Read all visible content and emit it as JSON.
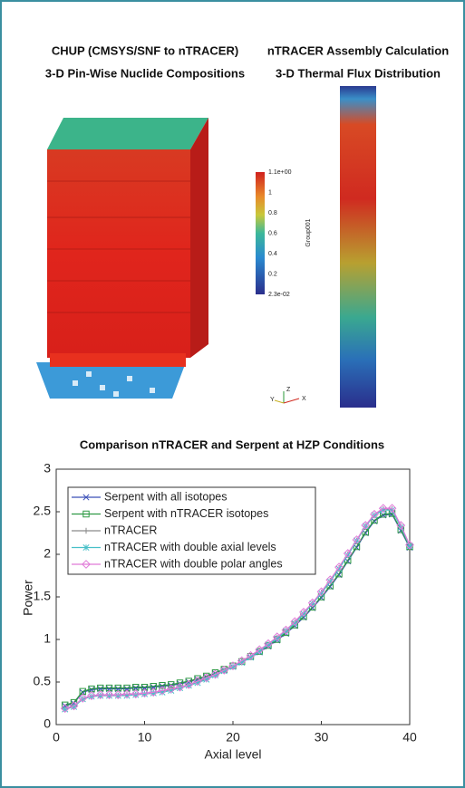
{
  "renderings": {
    "left_title": [
      "CHUP (CMSYS/SNF to nTRACER)",
      "3-D Pin-Wise Nuclide Compositions"
    ],
    "right_title": [
      "nTRACER Assembly Calculation",
      "3-D Thermal Flux Distribution"
    ],
    "colorbar": {
      "labels": [
        "1.1e+00",
        "1",
        "0.8",
        "0.6",
        "0.4",
        "0.2",
        "2.3e-02"
      ],
      "name": "Group001"
    },
    "axes_triad": [
      "Y",
      "Z",
      "X"
    ]
  },
  "chart_data": {
    "type": "line",
    "title": "Comparison nTRACER and Serpent at HZP Conditions",
    "x_label": "Axial level",
    "y_label": "Power",
    "x": [
      1,
      2,
      3,
      4,
      5,
      6,
      7,
      8,
      9,
      10,
      11,
      12,
      13,
      14,
      15,
      16,
      17,
      18,
      19,
      20,
      21,
      22,
      23,
      24,
      25,
      26,
      27,
      28,
      29,
      30,
      31,
      32,
      33,
      34,
      35,
      36,
      37,
      38,
      39,
      40
    ],
    "xlim": [
      0,
      40
    ],
    "xticks": [
      0,
      10,
      20,
      30,
      40
    ],
    "ylim": [
      0,
      3
    ],
    "yticks": [
      0,
      0.5,
      1,
      1.5,
      2,
      2.5,
      3
    ],
    "legend": "top-left",
    "series": [
      {
        "name": "Serpent with all isotopes",
        "color": "#3a4fb8",
        "marker": "x",
        "values": [
          0.22,
          0.25,
          0.38,
          0.41,
          0.42,
          0.42,
          0.42,
          0.42,
          0.43,
          0.43,
          0.44,
          0.45,
          0.46,
          0.48,
          0.5,
          0.53,
          0.56,
          0.6,
          0.64,
          0.68,
          0.73,
          0.79,
          0.85,
          0.92,
          0.99,
          1.07,
          1.16,
          1.26,
          1.37,
          1.49,
          1.62,
          1.76,
          1.92,
          2.08,
          2.25,
          2.39,
          2.46,
          2.47,
          2.28,
          2.08
        ]
      },
      {
        "name": "Serpent with nTRACER isotopes",
        "color": "#2e9a44",
        "marker": "square",
        "values": [
          0.23,
          0.26,
          0.39,
          0.42,
          0.43,
          0.43,
          0.43,
          0.43,
          0.44,
          0.44,
          0.45,
          0.46,
          0.47,
          0.49,
          0.51,
          0.54,
          0.57,
          0.61,
          0.65,
          0.69,
          0.74,
          0.8,
          0.86,
          0.93,
          1.0,
          1.08,
          1.17,
          1.27,
          1.38,
          1.5,
          1.63,
          1.77,
          1.93,
          2.09,
          2.26,
          2.4,
          2.47,
          2.48,
          2.29,
          2.09
        ]
      },
      {
        "name": "nTRACER",
        "color": "#8a8a8a",
        "marker": "vline",
        "values": [
          0.18,
          0.21,
          0.3,
          0.33,
          0.34,
          0.34,
          0.34,
          0.35,
          0.35,
          0.36,
          0.37,
          0.39,
          0.41,
          0.43,
          0.46,
          0.5,
          0.54,
          0.58,
          0.63,
          0.68,
          0.74,
          0.8,
          0.87,
          0.94,
          1.02,
          1.1,
          1.2,
          1.31,
          1.42,
          1.55,
          1.69,
          1.84,
          2.0,
          2.16,
          2.33,
          2.46,
          2.53,
          2.53,
          2.33,
          2.1
        ]
      },
      {
        "name": "nTRACER with double axial levels",
        "color": "#48c0c8",
        "marker": "star",
        "values": [
          0.18,
          0.21,
          0.3,
          0.33,
          0.34,
          0.34,
          0.34,
          0.34,
          0.35,
          0.36,
          0.37,
          0.38,
          0.4,
          0.43,
          0.46,
          0.49,
          0.53,
          0.58,
          0.63,
          0.68,
          0.73,
          0.79,
          0.86,
          0.94,
          1.01,
          1.1,
          1.19,
          1.3,
          1.42,
          1.54,
          1.68,
          1.83,
          1.99,
          2.16,
          2.33,
          2.46,
          2.52,
          2.52,
          2.32,
          2.1
        ]
      },
      {
        "name": "nTRACER with double polar angles",
        "color": "#e07ad8",
        "marker": "diamond",
        "values": [
          0.19,
          0.22,
          0.31,
          0.34,
          0.35,
          0.35,
          0.35,
          0.36,
          0.36,
          0.37,
          0.38,
          0.4,
          0.42,
          0.44,
          0.47,
          0.51,
          0.55,
          0.59,
          0.64,
          0.69,
          0.75,
          0.81,
          0.88,
          0.95,
          1.03,
          1.11,
          1.21,
          1.32,
          1.43,
          1.56,
          1.7,
          1.85,
          2.01,
          2.17,
          2.34,
          2.47,
          2.54,
          2.54,
          2.34,
          2.11
        ]
      }
    ]
  }
}
